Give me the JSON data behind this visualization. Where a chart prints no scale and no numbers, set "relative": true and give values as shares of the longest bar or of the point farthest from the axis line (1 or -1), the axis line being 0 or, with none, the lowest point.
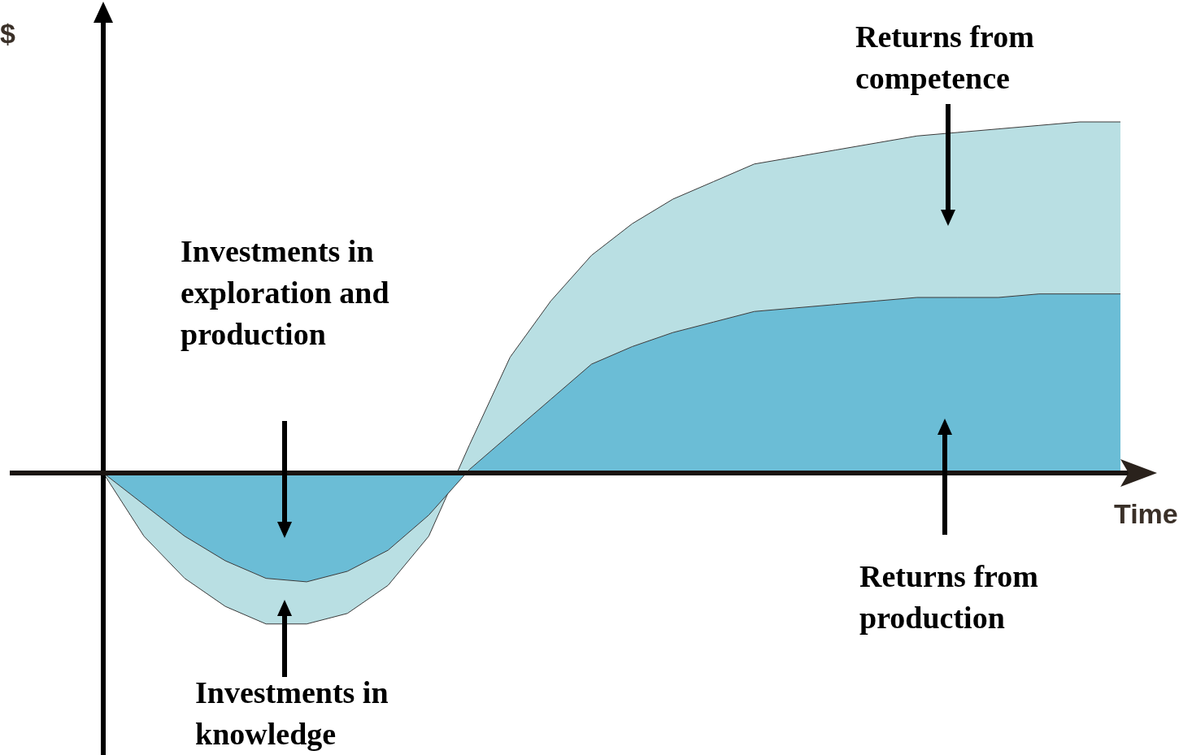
{
  "chart_data": {
    "type": "area",
    "stacked": true,
    "relative": true,
    "xlabel": "Time",
    "ylabel": "$",
    "categories": [
      null,
      null,
      null,
      null,
      null,
      null,
      null,
      null,
      null,
      null,
      null,
      null,
      null,
      null,
      null,
      null,
      null,
      null,
      null,
      null,
      null,
      null,
      null,
      null,
      null,
      null
    ],
    "series": [
      {
        "color": "#6bbdd6",
        "values": [
          0,
          -0.09,
          -0.18,
          -0.25,
          -0.3,
          -0.31,
          -0.28,
          -0.22,
          -0.12,
          0.01,
          0.11,
          0.21,
          0.31,
          0.36,
          0.4,
          0.43,
          0.46,
          0.47,
          0.48,
          0.49,
          0.5,
          0.5,
          0.5,
          0.51,
          0.51,
          0.51
        ]
      },
      {
        "color": "#b9dfe3",
        "values": [
          0,
          -0.09,
          -0.12,
          -0.13,
          -0.13,
          -0.12,
          -0.12,
          -0.1,
          -0.06,
          0.07,
          0.22,
          0.28,
          0.31,
          0.35,
          0.38,
          0.4,
          0.42,
          0.43,
          0.44,
          0.45,
          0.46,
          0.47,
          0.48,
          0.48,
          0.49,
          0.49
        ]
      }
    ],
    "annotations": [
      "Investments in\nexploration and\nproduction",
      "Investments in\nknowledge",
      "Returns from\ncompetence",
      "Returns from\nproduction"
    ]
  }
}
